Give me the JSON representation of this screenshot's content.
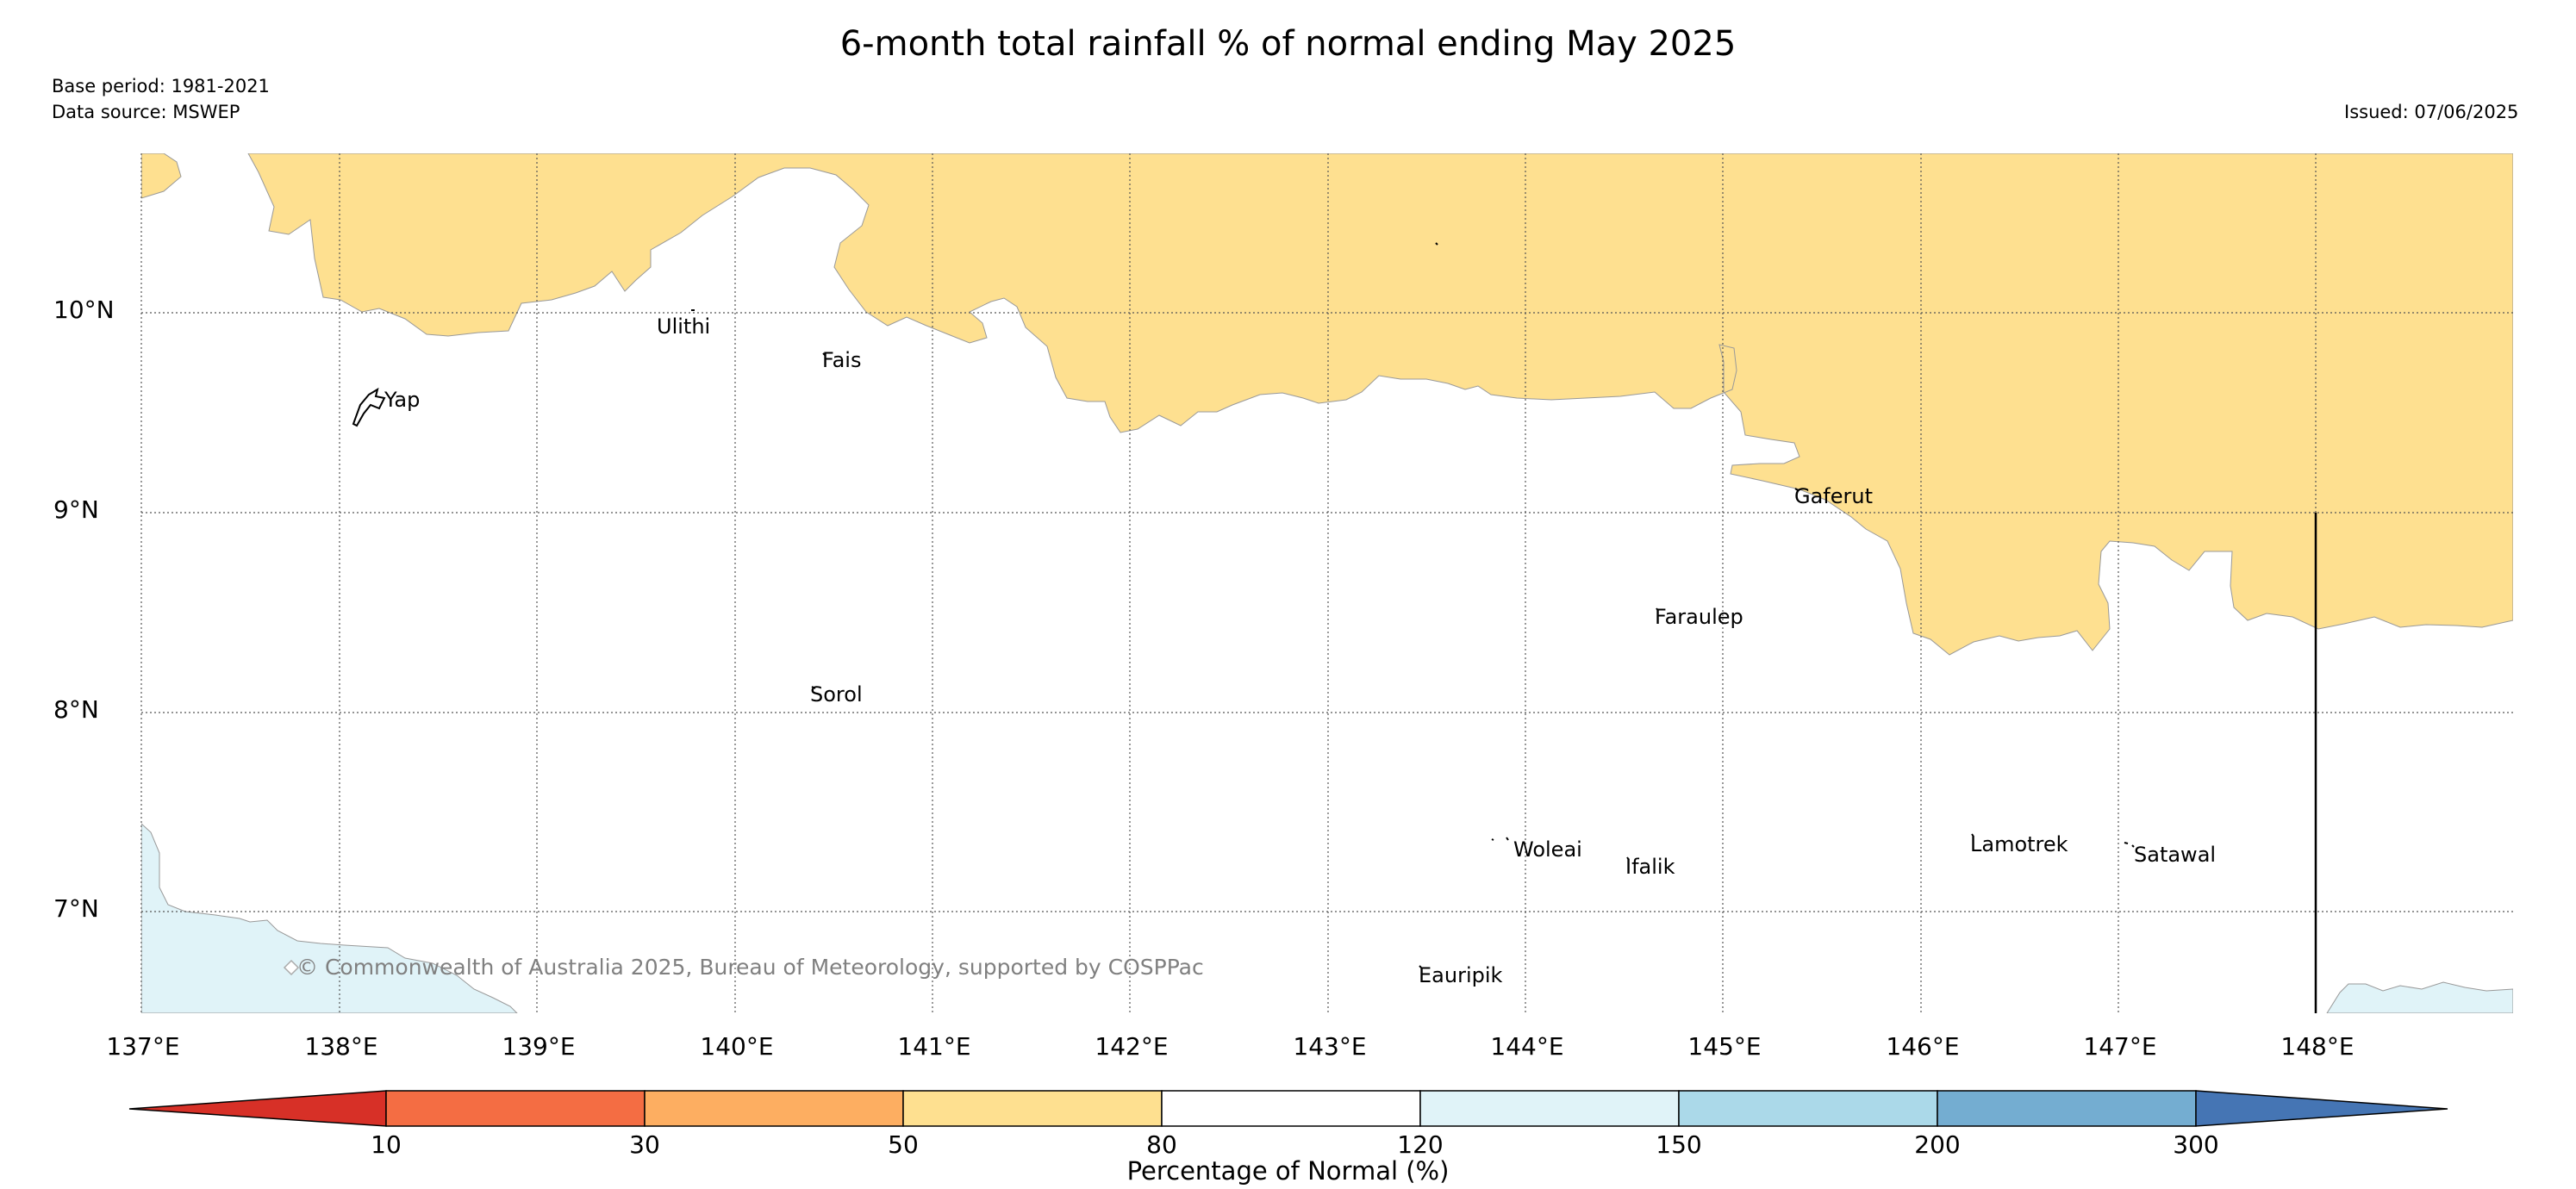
{
  "title": "6-month total rainfall % of normal ending May 2025",
  "base_period": "Base period: 1981-2021",
  "data_source": "Data source: MSWEP",
  "issued": "Issued: 07/06/2025",
  "copyright": "© Commonwealth of Australia 2025, Bureau of Meteorology, supported by COSPPac",
  "map": {
    "lon_range": [
      137.0,
      149.0
    ],
    "lat_range": [
      6.5,
      10.8
    ],
    "lat_ticks": [
      "10°N",
      "9°N",
      "8°N",
      "7°N"
    ],
    "lon_ticks": [
      "137°E",
      "138°E",
      "139°E",
      "140°E",
      "141°E",
      "142°E",
      "143°E",
      "144°E",
      "145°E",
      "146°E",
      "147°E",
      "148°E"
    ],
    "gridlines": true,
    "colors": {
      "50-80": "#fee090",
      "120-150": "#e0f3f8",
      "150-200": "#abd9e9",
      "200-300": "#74add1"
    }
  },
  "places": [
    {
      "name": "Yap"
    },
    {
      "name": "Ulithi"
    },
    {
      "name": "Fais"
    },
    {
      "name": "Sorol"
    },
    {
      "name": "Gaferut"
    },
    {
      "name": "Faraulep"
    },
    {
      "name": "Woleai"
    },
    {
      "name": "Ifalik"
    },
    {
      "name": "Lamotrek"
    },
    {
      "name": "Satawal"
    },
    {
      "name": "Eauripik"
    }
  ],
  "colorbar": {
    "title": "Percentage of Normal (%)",
    "tick_labels": [
      "10",
      "30",
      "50",
      "80",
      "120",
      "150",
      "200",
      "300"
    ],
    "bins": [
      {
        "range": "<10",
        "color": "#d73027"
      },
      {
        "range": "10-30",
        "color": "#f46d43"
      },
      {
        "range": "30-50",
        "color": "#fdae61"
      },
      {
        "range": "50-80",
        "color": "#fee090"
      },
      {
        "range": "80-120",
        "color": "#ffffff"
      },
      {
        "range": "120-150",
        "color": "#e0f3f8"
      },
      {
        "range": "150-200",
        "color": "#abd9e9"
      },
      {
        "range": "200-300",
        "color": "#74add1"
      },
      {
        "range": ">300",
        "color": "#4575b4"
      }
    ]
  }
}
